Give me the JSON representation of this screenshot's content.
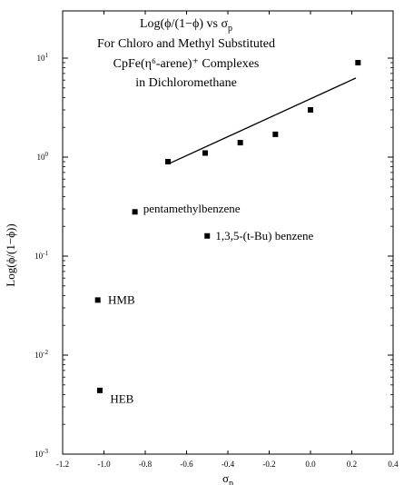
{
  "chart_data": {
    "type": "scatter",
    "title_lines": [
      "Log(ϕ/(1−ϕ) vs σ",
      "For Chloro and Methyl Substituted",
      "CpFe(η⁶-arene)⁺ Complexes",
      "in Dichloromethane"
    ],
    "title_subscript": "p",
    "xlabel": "σ",
    "xlabel_subscript": "p",
    "ylabel": "Log(ϕ/(1−ϕ))",
    "xlim": [
      -1.2,
      0.4
    ],
    "ylim": [
      0.001,
      30
    ],
    "yscale": "log",
    "x_ticks": [
      -1.2,
      -1.0,
      -0.8,
      -0.6,
      -0.4,
      -0.2,
      0.0,
      0.2,
      0.4
    ],
    "x_tick_labels": [
      "-1.2",
      "-1.0",
      "-0.8",
      "-0.6",
      "-0.4",
      "-0.2",
      "0.0",
      "0.2",
      "0.4"
    ],
    "y_ticks": [
      0.001,
      0.01,
      0.1,
      1,
      10
    ],
    "y_tick_labels": [
      {
        "base": "10",
        "exp": "-3"
      },
      {
        "base": "10",
        "exp": "-2"
      },
      {
        "base": "10",
        "exp": "-1"
      },
      {
        "base": "10",
        "exp": "0"
      },
      {
        "base": "10",
        "exp": "1"
      }
    ],
    "grid": false,
    "points": [
      {
        "x": -0.69,
        "y": 0.9
      },
      {
        "x": -0.51,
        "y": 1.1
      },
      {
        "x": -0.34,
        "y": 1.4
      },
      {
        "x": -0.17,
        "y": 1.7
      },
      {
        "x": 0.0,
        "y": 3.0
      },
      {
        "x": 0.23,
        "y": 9.0
      },
      {
        "x": -0.85,
        "y": 0.28
      },
      {
        "x": -0.5,
        "y": 0.16
      },
      {
        "x": -1.03,
        "y": 0.036
      },
      {
        "x": -1.02,
        "y": 0.0044
      }
    ],
    "fit_line": {
      "x": [
        -0.69,
        0.22
      ],
      "y": [
        0.85,
        6.3
      ]
    },
    "annotations": [
      {
        "text": "pentamethylbenzene",
        "x": -0.81,
        "y": 0.3
      },
      {
        "text": "1,3,5-(t-Bu) benzene",
        "x": -0.46,
        "y": 0.16
      },
      {
        "text": "HMB",
        "x": -0.98,
        "y": 0.036
      },
      {
        "text": "HEB",
        "x": -0.97,
        "y": 0.0036
      }
    ]
  }
}
